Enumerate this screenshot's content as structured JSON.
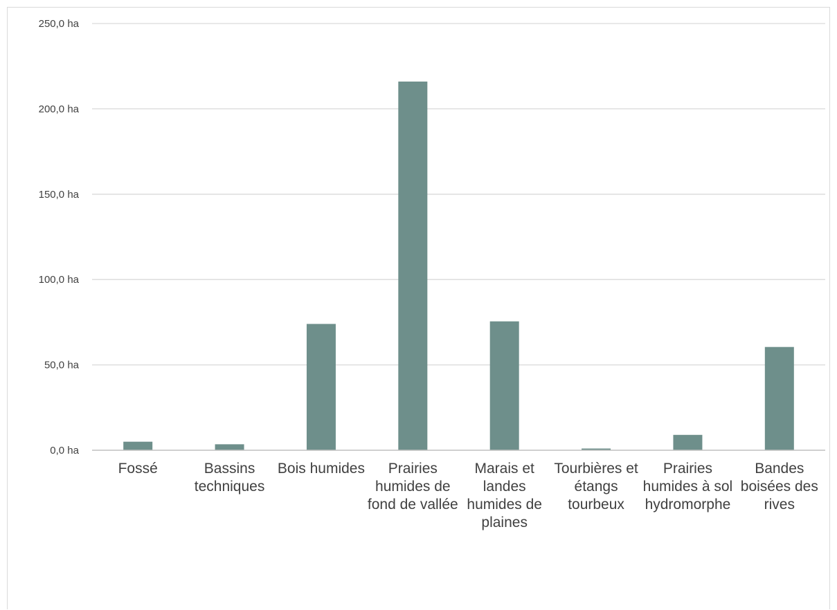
{
  "chart_data": {
    "type": "bar",
    "title": "",
    "xlabel": "",
    "ylabel": "",
    "categories": [
      "Fossé",
      "Bassins techniques",
      "Bois humides",
      "Prairies humides de fond de vallée",
      "Marais et landes humides de plaines",
      "Tourbières et étangs tourbeux",
      "Prairies humides à sol hydromorphe",
      "Bandes boisées des rives"
    ],
    "category_lines": [
      [
        "Fossé"
      ],
      [
        "Bassins",
        "techniques"
      ],
      [
        "Bois humides"
      ],
      [
        "Prairies",
        "humides de",
        "fond de vallée"
      ],
      [
        "Marais et",
        "landes",
        "humides de",
        "plaines"
      ],
      [
        "Tourbières et",
        "étangs",
        "tourbeux"
      ],
      [
        "Prairies",
        "humides à sol",
        "hydromorphe"
      ],
      [
        "Bandes",
        "boisées des",
        "rives"
      ]
    ],
    "values": [
      5.0,
      3.5,
      74.0,
      216.0,
      75.5,
      1.0,
      9.0,
      60.5
    ],
    "ylim": [
      0,
      250
    ],
    "yticks": [
      0,
      50,
      100,
      150,
      200,
      250
    ],
    "ytick_labels": [
      "0,0 ha",
      "50,0 ha",
      "100,0 ha",
      "150,0 ha",
      "200,0 ha",
      "250,0 ha"
    ],
    "grid": true,
    "legend": "none",
    "colors": {
      "bar": "#6e8f8b",
      "grid": "#d9d9d9",
      "axis": "#bfbfbf",
      "text": "#404040"
    }
  }
}
